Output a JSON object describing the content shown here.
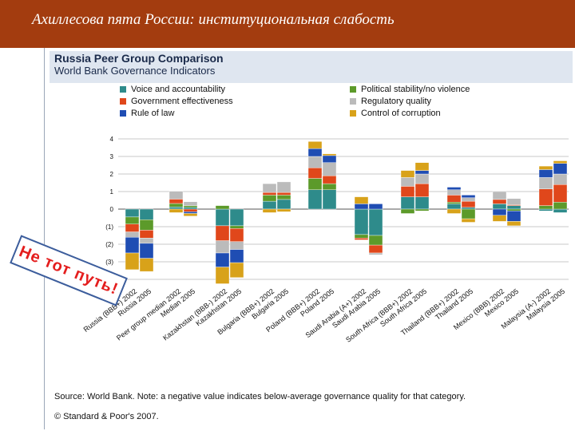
{
  "slide_title": "Ахиллесова пята России: институциональная слабость",
  "callout_text": "Не тот путь!",
  "source_note": "Source: World Bank. Note: a negative value indicates below-average governance quality for that category.",
  "copyright": "© Standard & Poor's 2007.",
  "chart_data": {
    "type": "bar",
    "stacked": true,
    "title": "Russia Peer Group Comparison",
    "subtitle": "World Bank Governance Indicators",
    "ylim": [
      -4.5,
      4
    ],
    "y_ticks": [
      "4",
      "3",
      "2",
      "1",
      "0",
      "(1)",
      "(2)",
      "(3)"
    ],
    "categories": [
      "Russia (BBB+) 2002",
      "Russia 2005",
      "Peer group median 2002",
      "Median 2005",
      "Kazakhstan (BBB-) 2002",
      "Kazakhstan 2005",
      "Bulgaria (BBB+) 2002",
      "Bulgaria 2005",
      "Poland (BBB+) 2002",
      "Poland 2005",
      "Saudi Arabia (A+) 2002",
      "Saudi Arabia 2005",
      "South Africa (BBB+) 2002",
      "South Africa 2005",
      "Thailand (BBB+) 2002",
      "Thailand 2005",
      "Mexico (BBB) 2002",
      "Mexico 2005",
      "Malaysia (A-) 2002",
      "Malaysia 2005"
    ],
    "series": [
      {
        "name": "Voice and accountability",
        "color": "#2e8b8b",
        "values": [
          -0.45,
          -0.6,
          0.12,
          0.1,
          -0.95,
          -0.95,
          0.45,
          0.55,
          1.1,
          1.1,
          -1.45,
          -1.5,
          0.7,
          0.7,
          0.3,
          0.1,
          0.3,
          0.2,
          -0.1,
          -0.2
        ]
      },
      {
        "name": "Political stability/no violence",
        "color": "#5c9a2a",
        "values": [
          -0.4,
          -0.6,
          0.2,
          0.1,
          0.2,
          -0.15,
          0.35,
          0.25,
          0.65,
          0.35,
          -0.2,
          -0.55,
          -0.25,
          -0.1,
          0.1,
          -0.55,
          0.0,
          -0.1,
          0.2,
          0.4
        ]
      },
      {
        "name": "Government effectiveness",
        "color": "#e0471b",
        "values": [
          -0.45,
          -0.45,
          0.25,
          -0.15,
          -0.85,
          -0.75,
          0.15,
          0.15,
          0.6,
          0.45,
          -0.1,
          -0.45,
          0.6,
          0.75,
          0.4,
          0.35,
          0.25,
          0.05,
          0.95,
          1.0
        ]
      },
      {
        "name": "Regulatory quality",
        "color": "#bbbbbb",
        "values": [
          -0.3,
          -0.3,
          0.45,
          0.22,
          -0.7,
          -0.45,
          0.5,
          0.6,
          0.65,
          0.75,
          0.0,
          -0.1,
          0.5,
          0.55,
          0.3,
          0.2,
          0.45,
          0.35,
          0.65,
          0.6
        ]
      },
      {
        "name": "Rule of law",
        "color": "#1f4db3",
        "values": [
          -0.9,
          -0.85,
          0.0,
          -0.1,
          -0.8,
          -0.75,
          0.0,
          0.0,
          0.45,
          0.4,
          0.3,
          0.3,
          0.0,
          0.2,
          0.15,
          0.15,
          -0.35,
          -0.6,
          0.45,
          0.6
        ]
      },
      {
        "name": "Control of corruption",
        "color": "#d8a21a",
        "values": [
          -0.95,
          -0.75,
          -0.2,
          -0.15,
          -0.95,
          -0.85,
          -0.2,
          -0.15,
          0.4,
          0.1,
          0.4,
          0.0,
          0.4,
          0.45,
          -0.25,
          -0.2,
          -0.35,
          -0.25,
          0.2,
          0.15
        ]
      }
    ]
  }
}
